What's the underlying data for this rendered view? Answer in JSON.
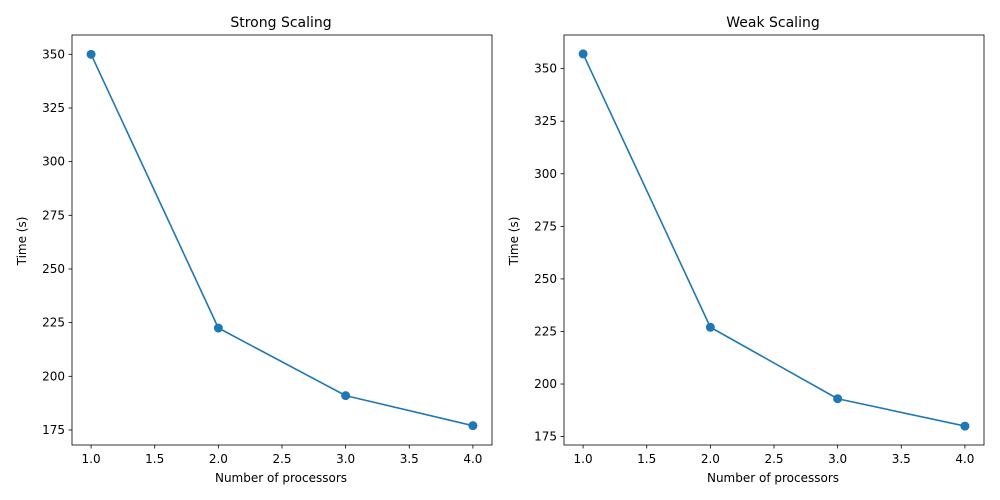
{
  "chart_data": [
    {
      "type": "line",
      "title": "Strong Scaling",
      "xlabel": "Number of processors",
      "ylabel": "Time (s)",
      "x": [
        1,
        2,
        3,
        4
      ],
      "series": [
        {
          "values": [
            350,
            222.5,
            191,
            177
          ]
        }
      ],
      "xlim": [
        0.85,
        4.15
      ],
      "ylim": [
        168,
        359
      ],
      "xticks": [
        "1.0",
        "1.5",
        "2.0",
        "2.5",
        "3.0",
        "3.5",
        "4.0"
      ],
      "yticks": [
        "175",
        "200",
        "225",
        "250",
        "275",
        "300",
        "325",
        "350"
      ],
      "marker": "circle",
      "grid": false,
      "color": "#1f77b4"
    },
    {
      "type": "line",
      "title": "Weak Scaling",
      "xlabel": "Number of processors",
      "ylabel": "Time (s)",
      "x": [
        1,
        2,
        3,
        4
      ],
      "series": [
        {
          "values": [
            357,
            227,
            193,
            180
          ]
        }
      ],
      "xlim": [
        0.85,
        4.15
      ],
      "ylim": [
        171,
        366
      ],
      "xticks": [
        "1.0",
        "1.5",
        "2.0",
        "2.5",
        "3.0",
        "3.5",
        "4.0"
      ],
      "yticks": [
        "175",
        "200",
        "225",
        "250",
        "275",
        "300",
        "325",
        "350"
      ],
      "marker": "circle",
      "grid": false,
      "color": "#1f77b4"
    }
  ]
}
